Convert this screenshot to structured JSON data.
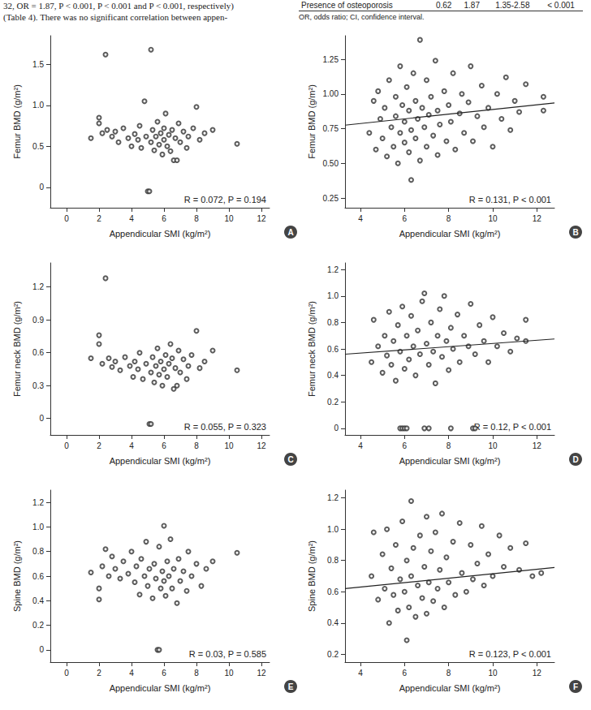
{
  "page_text": {
    "lines": [
      "32, OR = 1.87, P < 0.001, P < 0.001 and P < 0.001, respectively)",
      "(Table 4). There was no significant correlation between appen-"
    ],
    "table_row": [
      "Presence of osteoporosis",
      "0.62",
      "1.87",
      "1.35-2.58",
      "< 0.001"
    ],
    "table_note": "OR, odds ratio; CI, confidence interval."
  },
  "chart_data": [
    {
      "type": "scatter",
      "title": "A",
      "x_label": "Appendicular SMI (kg/m²)",
      "y_label": "Femur BMD (g/m²)",
      "annotations": [
        "R = 0.072, P = 0.194"
      ],
      "marker": "hollow_circle",
      "color": "#333333",
      "grid": false,
      "xlim": [
        -1,
        12.5
      ],
      "xticks": [
        0,
        2,
        4,
        6,
        8,
        10,
        12
      ],
      "ylim": [
        -0.25,
        1.85
      ],
      "yticks": [
        0,
        0.5,
        {
          "value": 1,
          "label": "1.0"
        },
        1.5
      ],
      "x": [
        1.5,
        2,
        2,
        2.2,
        2.4,
        2.5,
        2.8,
        3,
        3.2,
        3.5,
        3.8,
        4,
        4.2,
        4.4,
        4.5,
        4.6,
        4.8,
        4.9,
        5,
        5.1,
        5.2,
        5.2,
        5.3,
        5.4,
        5.5,
        5.6,
        5.7,
        5.8,
        5.9,
        6,
        6,
        6.1,
        6.2,
        6.3,
        6.4,
        6.5,
        6.6,
        6.7,
        6.8,
        6.9,
        7,
        7.2,
        7.4,
        7.5,
        7.8,
        8,
        8.2,
        8.5,
        9,
        10.5
      ],
      "values": [
        0.6,
        0.85,
        0.78,
        0.66,
        1.62,
        0.7,
        0.62,
        0.68,
        0.55,
        0.72,
        0.6,
        0.5,
        0.65,
        0.58,
        0.75,
        0.48,
        1.05,
        0.62,
        -0.05,
        -0.05,
        1.68,
        0.55,
        0.7,
        0.45,
        0.62,
        0.8,
        0.52,
        0.66,
        0.4,
        0.58,
        0.72,
        0.9,
        0.5,
        0.64,
        0.44,
        0.7,
        0.33,
        0.6,
        0.33,
        0.78,
        0.55,
        0.68,
        0.48,
        0.62,
        0.72,
        0.98,
        0.58,
        0.66,
        0.7,
        0.53
      ]
    },
    {
      "type": "scatter",
      "title": "B",
      "x_label": "Appendicular SMI (kg/m²)",
      "y_label": "Femur BMD (g/m²)",
      "annotations": [
        "R = 0.131, P < 0.001"
      ],
      "marker": "hollow_circle",
      "color": "#333333",
      "grid": false,
      "xlim": [
        3.3,
        12.8
      ],
      "xticks": [
        4,
        6,
        8,
        10,
        12
      ],
      "ylim": [
        0.18,
        1.42
      ],
      "yticks": [
        0.25,
        {
          "value": 0.5,
          "label": "0.50"
        },
        0.75,
        {
          "value": 1,
          "label": "1.00"
        },
        1.25
      ],
      "x": [
        4.4,
        4.6,
        4.7,
        4.8,
        4.9,
        5,
        5.1,
        5.2,
        5.3,
        5.4,
        5.5,
        5.6,
        5.6,
        5.7,
        5.8,
        5.8,
        5.9,
        6,
        6,
        6.1,
        6.2,
        6.2,
        6.3,
        6.3,
        6.4,
        6.5,
        6.5,
        6.6,
        6.7,
        6.7,
        6.8,
        6.9,
        7,
        7,
        7.1,
        7.2,
        7.3,
        7.4,
        7.5,
        7.5,
        7.6,
        7.8,
        7.9,
        8,
        8.1,
        8.2,
        8.3,
        8.5,
        8.6,
        8.7,
        8.9,
        9,
        9.1,
        9.3,
        9.5,
        9.6,
        9.8,
        10,
        10.2,
        10.4,
        10.6,
        10.8,
        11,
        11.2,
        11.5,
        12.3,
        12.3
      ],
      "values": [
        0.72,
        0.95,
        0.6,
        1.02,
        0.82,
        0.68,
        0.9,
        0.55,
        1.1,
        0.76,
        0.62,
        0.98,
        0.84,
        0.5,
        0.72,
        1.2,
        0.92,
        0.65,
        0.8,
        1.05,
        0.58,
        0.88,
        0.38,
        0.74,
        1.15,
        0.95,
        0.68,
        0.82,
        1.39,
        0.52,
        0.9,
        0.76,
        1.1,
        0.62,
        0.85,
        0.98,
        0.7,
        1.24,
        0.56,
        0.88,
        0.78,
        1.02,
        0.66,
        0.92,
        0.8,
        1.15,
        0.6,
        0.86,
        1.0,
        0.72,
        0.94,
        1.2,
        0.66,
        0.84,
        1.06,
        0.76,
        0.9,
        0.62,
        1.0,
        0.82,
        1.12,
        0.74,
        0.95,
        0.87,
        1.07,
        0.88,
        0.98
      ],
      "trend_line": {
        "x": [
          3.3,
          12.8
        ],
        "values": [
          0.775,
          0.935
        ]
      }
    },
    {
      "type": "scatter",
      "title": "C",
      "x_label": "Appendicular SMI (kg/m²)",
      "y_label": "Femur neck BMD (g/m²)",
      "annotations": [
        "R = 0.055, P = 0.323"
      ],
      "marker": "hollow_circle",
      "color": "#333333",
      "grid": false,
      "xlim": [
        -1,
        12.5
      ],
      "xticks": [
        0,
        2,
        4,
        6,
        8,
        10,
        12
      ],
      "ylim": [
        -0.15,
        1.42
      ],
      "yticks": [
        0,
        0.3,
        0.6,
        0.9,
        1.2
      ],
      "x": [
        1.5,
        2,
        2,
        2.2,
        2.4,
        2.6,
        2.8,
        3,
        3.3,
        3.6,
        3.9,
        4.1,
        4.2,
        4.4,
        4.5,
        4.7,
        4.9,
        5.1,
        5.2,
        5.2,
        5.3,
        5.4,
        5.5,
        5.6,
        5.7,
        5.8,
        5.9,
        6,
        6.1,
        6.2,
        6.3,
        6.4,
        6.5,
        6.6,
        6.7,
        6.8,
        6.9,
        7,
        7.2,
        7.4,
        7.5,
        7.7,
        8,
        8.2,
        8.5,
        9,
        10.5
      ],
      "values": [
        0.55,
        0.76,
        0.68,
        0.5,
        1.28,
        0.55,
        0.47,
        0.52,
        0.44,
        0.56,
        0.48,
        0.38,
        0.52,
        0.45,
        0.6,
        0.36,
        0.5,
        -0.05,
        -0.05,
        0.42,
        0.56,
        0.33,
        0.48,
        0.64,
        0.4,
        0.52,
        0.3,
        0.45,
        0.58,
        0.38,
        0.5,
        0.68,
        0.55,
        0.27,
        0.46,
        0.3,
        0.62,
        0.42,
        0.54,
        0.36,
        0.48,
        0.58,
        0.8,
        0.46,
        0.52,
        0.62,
        0.44
      ]
    },
    {
      "type": "scatter",
      "title": "D",
      "x_label": "Appendicular SMI (kg/m²)",
      "y_label": "Femur neck BMD (g/m²)",
      "annotations": [
        "R = 0.12, P < 0.001"
      ],
      "marker": "hollow_circle",
      "color": "#333333",
      "grid": false,
      "xlim": [
        3.3,
        12.8
      ],
      "xticks": [
        4,
        6,
        8,
        10,
        12
      ],
      "ylim": [
        -0.05,
        1.25
      ],
      "yticks": [
        0,
        0.2,
        0.4,
        0.6,
        0.8,
        {
          "value": 1,
          "label": "1.0"
        },
        1.2
      ],
      "x": [
        4.5,
        4.6,
        4.8,
        5,
        5.1,
        5.2,
        5.3,
        5.4,
        5.5,
        5.6,
        5.7,
        5.8,
        5.8,
        5.9,
        5.9,
        6,
        6,
        6.1,
        6.1,
        6.2,
        6.3,
        6.4,
        6.5,
        6.6,
        6.7,
        6.8,
        6.9,
        6.9,
        7,
        7.1,
        7.1,
        7.2,
        7.3,
        7.4,
        7.5,
        7.6,
        7.7,
        7.8,
        7.9,
        8,
        8.1,
        8.1,
        8.2,
        8.4,
        8.5,
        8.7,
        8.9,
        9,
        9.1,
        9.2,
        9.2,
        9.4,
        9.6,
        9.8,
        10,
        10.2,
        10.5,
        10.8,
        11.1,
        11.5,
        11.5
      ],
      "values": [
        0.5,
        0.82,
        0.62,
        0.42,
        0.7,
        0.55,
        0.88,
        0.48,
        0.66,
        0.36,
        0.78,
        0,
        0.58,
        0,
        0.92,
        0,
        0.45,
        0,
        0.7,
        0.52,
        0.85,
        0.62,
        0.4,
        0.74,
        0.56,
        0.96,
        0,
        1.02,
        0.64,
        0,
        0.48,
        0.8,
        0.58,
        0.34,
        0.7,
        0.9,
        0.54,
        1.0,
        0.66,
        0.44,
        0,
        0.76,
        0.6,
        0.86,
        0.5,
        0.7,
        0.62,
        0.94,
        0,
        0,
        0.56,
        0.78,
        0.66,
        0.5,
        0.84,
        0.62,
        0.72,
        0.58,
        0.68,
        0.82,
        0.66
      ],
      "trend_line": {
        "x": [
          3.3,
          12.8
        ],
        "values": [
          0.56,
          0.675
        ]
      }
    },
    {
      "type": "scatter",
      "title": "E",
      "x_label": "Appendicular SMI (kg/m²)",
      "y_label": "Spine BMD (g/m²)",
      "annotations": [
        "R = 0.03, P = 0.585"
      ],
      "marker": "hollow_circle",
      "color": "#333333",
      "grid": false,
      "xlim": [
        -1,
        12.5
      ],
      "xticks": [
        0,
        2,
        4,
        6,
        8,
        10,
        12
      ],
      "ylim": [
        -0.1,
        1.3
      ],
      "yticks": [
        0,
        0.2,
        0.4,
        0.6,
        0.8,
        {
          "value": 1,
          "label": "1.0"
        },
        1.2
      ],
      "x": [
        1.5,
        2,
        2,
        2.2,
        2.4,
        2.6,
        2.8,
        3,
        3.3,
        3.5,
        3.8,
        4,
        4.2,
        4.3,
        4.5,
        4.6,
        4.8,
        4.9,
        5,
        5.1,
        5.3,
        5.4,
        5.5,
        5.6,
        5.7,
        5.7,
        5.8,
        5.9,
        6,
        6,
        6.1,
        6.2,
        6.3,
        6.4,
        6.5,
        6.6,
        6.8,
        6.9,
        7,
        7.2,
        7.4,
        7.5,
        7.7,
        8,
        8.3,
        8.6,
        9,
        10.5
      ],
      "values": [
        0.63,
        0.41,
        0.5,
        0.68,
        0.82,
        0.6,
        0.76,
        0.66,
        0.58,
        0.72,
        0.62,
        0.8,
        0.55,
        0.68,
        0.45,
        0.74,
        0.6,
        0.88,
        0.52,
        0.66,
        0.42,
        0.7,
        0.58,
        0,
        0,
        0.84,
        0.5,
        0.64,
        1.01,
        0.56,
        0.44,
        0.72,
        0.6,
        0.9,
        0.5,
        0.66,
        0.38,
        0.74,
        0.56,
        0.64,
        0.48,
        0.8,
        0.6,
        0.7,
        0.52,
        0.66,
        0.72,
        0.79
      ]
    },
    {
      "type": "scatter",
      "title": "F",
      "x_label": "Appendicular SMI (kg/m²)",
      "y_label": "Spine BMD (g/m²)",
      "annotations": [
        "R = 0.123, P < 0.001"
      ],
      "marker": "hollow_circle",
      "color": "#333333",
      "grid": false,
      "xlim": [
        3.3,
        12.8
      ],
      "xticks": [
        4,
        6,
        8,
        10,
        12
      ],
      "ylim": [
        0.15,
        1.25
      ],
      "yticks": [
        0.2,
        0.4,
        0.6,
        0.8,
        {
          "value": 1,
          "label": "1.0"
        },
        1.2
      ],
      "x": [
        4.5,
        4.6,
        4.8,
        5,
        5.1,
        5.2,
        5.3,
        5.4,
        5.5,
        5.6,
        5.7,
        5.8,
        5.9,
        6,
        6.1,
        6.1,
        6.2,
        6.3,
        6.3,
        6.4,
        6.5,
        6.6,
        6.7,
        6.8,
        6.9,
        7,
        7,
        7.1,
        7.2,
        7.3,
        7.4,
        7.5,
        7.6,
        7.7,
        7.8,
        7.9,
        8,
        8.2,
        8.3,
        8.5,
        8.6,
        8.8,
        9,
        9.1,
        9.3,
        9.5,
        9.6,
        9.8,
        10,
        10.3,
        10.5,
        10.8,
        11.2,
        11.5,
        11.8,
        12.2
      ],
      "values": [
        0.7,
        0.98,
        0.55,
        0.84,
        0.62,
        1.0,
        0.4,
        0.75,
        0.58,
        0.9,
        0.48,
        0.68,
        1.05,
        0.6,
        0.29,
        0.8,
        0.5,
        1.18,
        0.7,
        0.88,
        0.44,
        0.64,
        0.96,
        0.56,
        0.76,
        1.08,
        0.46,
        0.66,
        0.86,
        0.54,
        0.98,
        0.62,
        0.74,
        1.1,
        0.5,
        0.82,
        0.66,
        0.92,
        0.58,
        1.04,
        0.72,
        0.6,
        0.9,
        0.68,
        0.78,
        1.02,
        0.64,
        0.84,
        0.7,
        0.96,
        0.76,
        0.88,
        0.74,
        0.91,
        0.7,
        0.72
      ],
      "trend_line": {
        "x": [
          3.3,
          12.8
        ],
        "values": [
          0.62,
          0.755
        ]
      }
    }
  ]
}
